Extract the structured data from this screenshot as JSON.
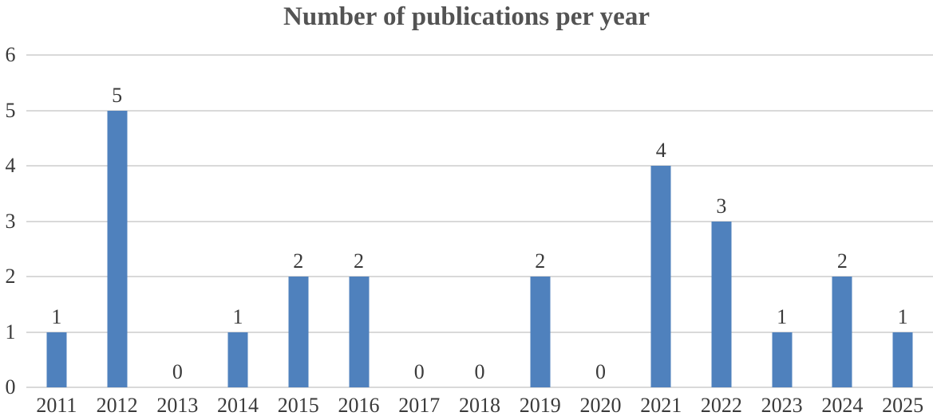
{
  "chart_data": {
    "type": "bar",
    "title": "Number of publications per year",
    "categories": [
      "2011",
      "2012",
      "2013",
      "2014",
      "2015",
      "2016",
      "2017",
      "2018",
      "2019",
      "2020",
      "2021",
      "2022",
      "2023",
      "2024",
      "2025"
    ],
    "values": [
      1,
      5,
      0,
      1,
      2,
      2,
      0,
      0,
      2,
      0,
      4,
      3,
      1,
      2,
      1
    ],
    "xlabel": "",
    "ylabel": "",
    "ylim": [
      0,
      6
    ],
    "y_ticks": [
      0,
      1,
      2,
      3,
      4,
      5,
      6
    ],
    "grid": "horizontal",
    "legend": "none",
    "data_labels": "above-bars",
    "colors": {
      "bar": "#4F81BD",
      "gridline": "#D9D9D9",
      "title": "#535353",
      "axis_labels": "#3A3A3A",
      "background": "#FFFFFF"
    }
  }
}
